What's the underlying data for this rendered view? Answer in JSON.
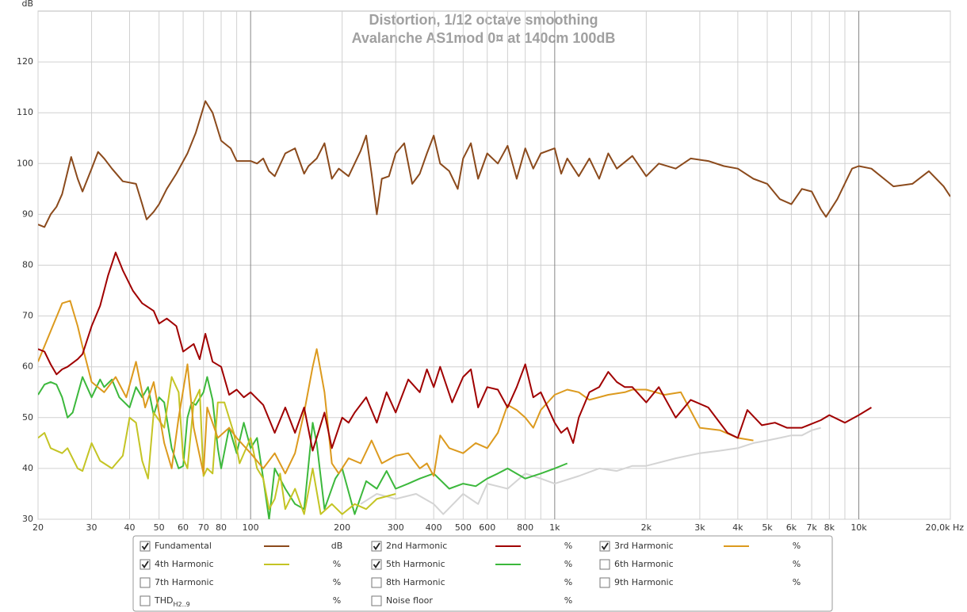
{
  "chart_data": {
    "type": "line",
    "title": "Distortion, 1/12 octave smoothing",
    "subtitle": "Avalanche AS1mod 0¤ at 140cm 100dB",
    "ylabel": "dB",
    "log_x": true,
    "grid": true,
    "xlim": [
      20,
      20000
    ],
    "ylim": [
      30,
      130
    ],
    "yticks": [
      30,
      40,
      50,
      60,
      70,
      80,
      90,
      100,
      110,
      120
    ],
    "xticks": [
      20,
      30,
      40,
      50,
      60,
      70,
      80,
      100,
      200,
      300,
      400,
      500,
      600,
      800,
      {
        "value": 1000,
        "label": "1k"
      },
      {
        "value": 2000,
        "label": "2k"
      },
      {
        "value": 3000,
        "label": "3k"
      },
      {
        "value": 4000,
        "label": "4k"
      },
      {
        "value": 5000,
        "label": "5k"
      },
      {
        "value": 6000,
        "label": "6k"
      },
      {
        "value": 7000,
        "label": "7k"
      },
      {
        "value": 8000,
        "label": "8k"
      },
      {
        "value": 10000,
        "label": "10k"
      },
      {
        "value": 20000,
        "label": "20,0k Hz"
      }
    ],
    "xgrid_minor": [
      90,
      700,
      900,
      9000
    ],
    "series": [
      {
        "name": "Fundamental",
        "color": "#8b4a1c",
        "unit": "dB",
        "checked": true,
        "x": [
          20,
          21,
          22,
          23,
          24,
          25.7,
          27,
          28,
          30,
          31.5,
          33,
          35,
          38,
          42,
          44,
          45.5,
          48,
          50,
          53,
          57,
          62,
          66,
          71,
          75,
          80,
          86,
          90,
          95,
          100,
          105,
          110,
          115,
          120,
          130,
          140,
          150,
          155,
          165,
          175,
          185,
          195,
          210,
          230,
          240,
          250,
          260,
          270,
          285,
          300,
          320,
          340,
          360,
          380,
          400,
          420,
          450,
          480,
          500,
          530,
          560,
          600,
          650,
          700,
          750,
          800,
          850,
          900,
          1000,
          1050,
          1100,
          1200,
          1300,
          1400,
          1500,
          1600,
          1800,
          2000,
          2200,
          2500,
          2800,
          3200,
          3600,
          4000,
          4500,
          5000,
          5500,
          6000,
          6500,
          7000,
          7500,
          7800,
          8500,
          9500,
          10000,
          11000,
          13000,
          15000,
          17000,
          19000,
          20000
        ],
        "values": [
          88,
          87.5,
          90,
          91.5,
          94,
          101.3,
          97,
          94.5,
          99,
          102.3,
          101,
          99,
          96.5,
          96,
          92,
          89,
          90.5,
          92,
          95,
          98,
          102,
          106,
          112.3,
          110,
          104.5,
          103,
          100.5,
          100.5,
          100.5,
          100,
          101,
          98.5,
          97.5,
          102,
          103,
          98,
          99.5,
          101,
          104,
          97,
          99,
          97.5,
          102.5,
          105.5,
          98,
          90,
          97,
          97.5,
          102,
          104,
          96,
          98,
          102,
          105.5,
          100,
          98.5,
          95,
          101,
          104,
          97,
          102,
          100,
          103.5,
          97,
          103,
          99,
          102,
          103,
          98,
          101,
          97.5,
          101,
          97,
          102,
          99,
          101.5,
          97.5,
          100,
          99,
          101,
          100.5,
          99.5,
          99,
          97,
          96,
          93,
          92,
          95,
          94.5,
          91,
          89.5,
          93,
          99,
          99.5,
          99,
          95.5,
          96,
          98.5,
          95.5,
          93.5
        ]
      },
      {
        "name": "2nd Harmonic",
        "color": "#a00000",
        "unit": "%",
        "checked": true,
        "x": [
          20,
          21,
          22,
          23,
          24,
          25,
          27,
          28,
          30,
          32,
          34,
          36,
          38,
          41,
          44,
          48,
          50,
          53,
          57,
          60,
          65,
          68,
          71,
          75,
          80,
          85,
          90,
          95,
          100,
          110,
          120,
          130,
          140,
          150,
          160,
          175,
          185,
          200,
          210,
          220,
          240,
          260,
          280,
          300,
          330,
          360,
          380,
          400,
          420,
          460,
          500,
          530,
          560,
          600,
          650,
          700,
          750,
          800,
          850,
          900,
          1000,
          1050,
          1100,
          1150,
          1200,
          1300,
          1400,
          1500,
          1600,
          1700,
          1800,
          2000,
          2200,
          2500,
          2800,
          3200,
          3700,
          4000,
          4300,
          4800,
          5300,
          5800,
          6500,
          7500,
          8000,
          9000,
          10000,
          11000
        ],
        "values": [
          63.5,
          63,
          60.5,
          58.5,
          59.5,
          60,
          61.5,
          62.5,
          68,
          72,
          78,
          82.5,
          79,
          75,
          72.5,
          71,
          68.5,
          69.5,
          68,
          63,
          64.5,
          61.5,
          66.5,
          61,
          60,
          54.5,
          55.5,
          54,
          55,
          52.5,
          47,
          52,
          47,
          52,
          43.5,
          51,
          44,
          50,
          49,
          51,
          54,
          49,
          55,
          51,
          57.5,
          55,
          59.5,
          56,
          60,
          53,
          58,
          59.5,
          52,
          56,
          55.5,
          52,
          56,
          60.5,
          54,
          55,
          49,
          47,
          48,
          45,
          50,
          55,
          56,
          59,
          57,
          56,
          56,
          53,
          56,
          50,
          53.5,
          52,
          47,
          46,
          51.5,
          48.5,
          49,
          48,
          48,
          49.5,
          50.5,
          49,
          50.5,
          52
        ]
      },
      {
        "name": "3rd Harmonic",
        "color": "#dc9a1e",
        "unit": "%",
        "checked": true,
        "x": [
          20,
          22,
          24,
          25.5,
          27,
          28,
          30,
          33,
          36,
          39,
          42,
          45,
          48,
          52,
          55,
          58,
          62,
          65,
          70,
          72,
          78,
          85,
          90,
          100,
          110,
          120,
          130,
          140,
          150,
          160,
          165,
          175,
          185,
          195,
          210,
          230,
          250,
          270,
          300,
          330,
          360,
          380,
          400,
          420,
          450,
          500,
          550,
          600,
          650,
          700,
          750,
          800,
          850,
          900,
          1000,
          1100,
          1200,
          1300,
          1500,
          1700,
          1800,
          2000,
          2300,
          2600,
          3000,
          3500,
          4000,
          4500
        ],
        "values": [
          61,
          67,
          72.5,
          73,
          68,
          64,
          57,
          55,
          58,
          54,
          61,
          52,
          57,
          45,
          40,
          50,
          60.5,
          48,
          39,
          52,
          46,
          48,
          46,
          43,
          40,
          43,
          39,
          43,
          51,
          60,
          63.5,
          55,
          41,
          39,
          42,
          41,
          45.5,
          41,
          42.5,
          43,
          40,
          41,
          38.5,
          46.5,
          44,
          43,
          45,
          44,
          47,
          52.5,
          51.5,
          50,
          48,
          51.5,
          54.5,
          55.5,
          55,
          53.5,
          54.5,
          55,
          55.5,
          55.5,
          54.5,
          55,
          48,
          47.5,
          46,
          45.5
        ]
      },
      {
        "name": "4th Harmonic",
        "color": "#c4c424",
        "unit": "%",
        "checked": true,
        "x": [
          20,
          21,
          22,
          24,
          25,
          27,
          28,
          30,
          32,
          35,
          38,
          40,
          42,
          44,
          46,
          48,
          52,
          55,
          58,
          60,
          62,
          65,
          68,
          70,
          72,
          75,
          78,
          82,
          88,
          92,
          100,
          105,
          110,
          115,
          120,
          125,
          130,
          140,
          150,
          160,
          170,
          185,
          200,
          220,
          240,
          260,
          300
        ],
        "values": [
          46,
          47,
          44,
          43,
          44,
          40,
          39.5,
          45,
          41.5,
          40,
          42.5,
          50,
          49,
          41.5,
          38,
          51,
          48,
          58,
          55,
          42,
          40,
          53,
          55.5,
          38.5,
          40,
          39,
          53,
          53,
          47,
          41,
          46,
          40,
          38,
          32,
          34,
          39,
          32,
          36,
          31,
          40,
          31,
          33,
          31,
          33,
          32,
          34,
          35
        ]
      },
      {
        "name": "5th Harmonic",
        "color": "#3cb83c",
        "unit": "%",
        "checked": true,
        "x": [
          20,
          21,
          22,
          23,
          24,
          25,
          26,
          28,
          30,
          32,
          33,
          35,
          37,
          40,
          42,
          44,
          46,
          48,
          50,
          52,
          55,
          58,
          60,
          62,
          64,
          66,
          70,
          72,
          75,
          78,
          80,
          85,
          90,
          95,
          100,
          105,
          110,
          115,
          120,
          130,
          140,
          150,
          160,
          165,
          175,
          190,
          200,
          220,
          240,
          260,
          280,
          300,
          330,
          360,
          400,
          450,
          500,
          550,
          600,
          650,
          700,
          800,
          900,
          1000,
          1100
        ],
        "values": [
          54.5,
          56.5,
          57,
          56.5,
          54,
          50,
          51,
          58,
          54,
          57.5,
          56,
          57.5,
          54,
          52,
          56,
          54,
          56,
          50.5,
          54,
          53,
          44,
          40,
          40.5,
          50,
          53,
          52.5,
          55,
          58,
          53.5,
          44,
          40,
          48,
          43,
          49,
          44,
          46,
          38,
          30,
          40,
          36,
          33,
          32,
          49,
          45,
          32,
          38,
          40,
          31,
          37.5,
          36,
          39.5,
          36,
          37,
          38,
          39,
          36,
          37,
          36.5,
          38,
          39,
          40,
          38,
          39,
          40,
          41
        ]
      },
      {
        "name": "6th Harmonic",
        "color": "#4a86cc",
        "unit": "%",
        "checked": false
      },
      {
        "name": "7th Harmonic",
        "color": "#dc6edc",
        "unit": "%",
        "checked": false
      },
      {
        "name": "8th Harmonic",
        "color": "#888888",
        "unit": "%",
        "checked": false
      },
      {
        "name": "9th Harmonic",
        "color": "#1cbcc8",
        "unit": "%",
        "checked": false
      },
      {
        "name": "THD",
        "subscript": "H2..9",
        "color": "#000000",
        "unit": "%",
        "checked": false
      },
      {
        "name": "Noise floor",
        "color": "#000000",
        "unit": "%",
        "checked": false
      }
    ],
    "grey_trace": {
      "color": "#d4d4d4",
      "x": [
        230,
        260,
        300,
        350,
        400,
        430,
        500,
        560,
        600,
        700,
        800,
        900,
        1000,
        1200,
        1400,
        1600,
        1800,
        2000,
        2500,
        3000,
        3500,
        4000,
        4500,
        5000,
        5500,
        6000,
        6500,
        7000,
        7500
      ],
      "values": [
        33,
        35,
        34,
        35,
        33,
        31,
        35,
        33,
        37,
        36,
        39,
        38,
        37,
        38.5,
        40,
        39.5,
        40.5,
        40.5,
        42,
        43,
        43.5,
        44,
        45,
        45.5,
        46,
        46.5,
        46.5,
        47.5,
        48
      ]
    }
  }
}
